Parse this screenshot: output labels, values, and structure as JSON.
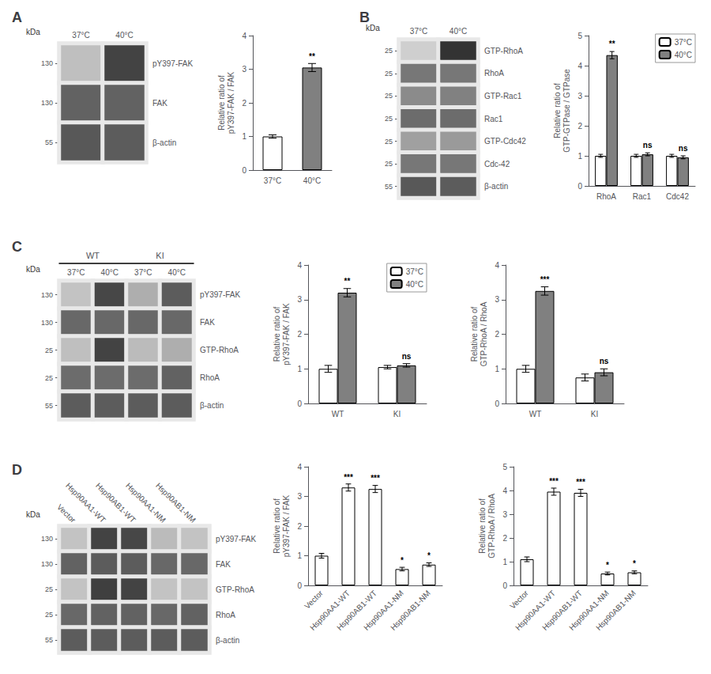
{
  "chart_data": [
    {
      "type": "heatmap",
      "title": "A",
      "x": [
        "37°C",
        "40°C"
      ],
      "categories": [
        "pY397-FAK",
        "FAK",
        "β-actin"
      ],
      "ylabel": "kDa",
      "kda": [
        130,
        130,
        55
      ],
      "values": [
        [
          0.2,
          0.8
        ],
        [
          0.65,
          0.65
        ],
        [
          0.7,
          0.68
        ]
      ],
      "zlim": [
        0,
        1
      ],
      "color": "#e8e8e8"
    },
    {
      "type": "bar",
      "categories": [
        "37°C",
        "40°C"
      ],
      "values": [
        1.0,
        3.05
      ],
      "errors": [
        0.05,
        0.12
      ],
      "colors": [
        "white",
        "#808080"
      ],
      "significance": [
        null,
        "**"
      ],
      "ylabel": "Relative ratio of\npY397-FAK / FAK",
      "ylim": [
        0,
        4
      ],
      "yticks": [
        0,
        1,
        2,
        3,
        4
      ],
      "grid": false
    },
    {
      "type": "heatmap",
      "title": "B",
      "x": [
        "37°C",
        "40°C"
      ],
      "categories": [
        "GTP-RhoA",
        "RhoA",
        "GTP-Rac1",
        "Rac1",
        "GTP-Cdc42",
        "Cdc-42",
        "β-actin"
      ],
      "ylabel": "kDa",
      "kda": [
        25,
        25,
        25,
        25,
        25,
        25,
        55
      ],
      "values": [
        [
          0.12,
          0.88
        ],
        [
          0.55,
          0.55
        ],
        [
          0.45,
          0.5
        ],
        [
          0.6,
          0.6
        ],
        [
          0.35,
          0.38
        ],
        [
          0.55,
          0.55
        ],
        [
          0.7,
          0.68
        ]
      ],
      "zlim": [
        0,
        1
      ],
      "color": "#e8e8e8"
    },
    {
      "type": "bar",
      "categories": [
        "RhoA",
        "Rac1",
        "Cdc42"
      ],
      "series": [
        {
          "name": "37°C",
          "color": "white",
          "values": [
            1.0,
            1.0,
            1.0
          ],
          "errors": [
            0.05,
            0.05,
            0.05
          ]
        },
        {
          "name": "40°C",
          "color": "#808080",
          "values": [
            4.35,
            1.05,
            0.95
          ],
          "errors": [
            0.12,
            0.05,
            0.05
          ],
          "significance": [
            "**",
            "ns",
            "ns"
          ]
        }
      ],
      "ylabel": "Relative ratio of\nGTP-GTPase / GTPase",
      "ylim": [
        0,
        5
      ],
      "yticks": [
        0,
        1,
        2,
        3,
        4,
        5
      ],
      "legend": "upper right",
      "grid": false
    },
    {
      "type": "heatmap",
      "title": "C",
      "groups": [
        "WT",
        "KI"
      ],
      "x": [
        "37°C",
        "40°C",
        "37°C",
        "40°C"
      ],
      "categories": [
        "pY397-FAK",
        "FAK",
        "GTP-RhoA",
        "RhoA",
        "β-actin"
      ],
      "ylabel": "kDa",
      "kda": [
        130,
        130,
        25,
        25,
        55
      ],
      "values": [
        [
          0.18,
          0.78,
          0.28,
          0.68
        ],
        [
          0.62,
          0.62,
          0.62,
          0.62
        ],
        [
          0.2,
          0.8,
          0.22,
          0.28
        ],
        [
          0.6,
          0.6,
          0.6,
          0.65
        ],
        [
          0.68,
          0.68,
          0.68,
          0.68
        ]
      ],
      "zlim": [
        0,
        1
      ],
      "color": "#e8e8e8"
    },
    {
      "type": "bar",
      "categories": [
        "WT",
        "KI"
      ],
      "series": [
        {
          "name": "37°C",
          "color": "white",
          "values": [
            1.0,
            1.05
          ],
          "errors": [
            0.1,
            0.05
          ]
        },
        {
          "name": "40°C",
          "color": "#808080",
          "values": [
            3.2,
            1.1
          ],
          "errors": [
            0.12,
            0.05
          ],
          "significance": [
            "**",
            "ns"
          ]
        }
      ],
      "ylabel": "Relative ratio of\npY397-FAK / FAK",
      "ylim": [
        0,
        4
      ],
      "yticks": [
        0,
        1,
        2,
        3,
        4
      ],
      "legend": "upper right",
      "grid": false
    },
    {
      "type": "bar",
      "categories": [
        "WT",
        "KI"
      ],
      "series": [
        {
          "name": "37°C",
          "color": "white",
          "values": [
            1.0,
            0.75
          ],
          "errors": [
            0.1,
            0.1
          ]
        },
        {
          "name": "40°C",
          "color": "#808080",
          "values": [
            3.25,
            0.9
          ],
          "errors": [
            0.12,
            0.1
          ],
          "significance": [
            "***",
            "ns"
          ]
        }
      ],
      "ylabel": "Relative ratio of\nGTP-RhoA / RhoA",
      "ylim": [
        0,
        4
      ],
      "yticks": [
        0,
        1,
        2,
        3,
        4
      ],
      "grid": false
    },
    {
      "type": "heatmap",
      "title": "D",
      "x": [
        "Vector",
        "Hsp90AA1-WT",
        "Hsp90AB1-WT",
        "Hsp90AA1-NM",
        "Hsp90AB1-NM"
      ],
      "categories": [
        "pY397-FAK",
        "FAK",
        "GTP-RhoA",
        "RhoA",
        "β-actin"
      ],
      "ylabel": "kDa",
      "kda": [
        130,
        130,
        25,
        25,
        55
      ],
      "values": [
        [
          0.18,
          0.8,
          0.78,
          0.22,
          0.18
        ],
        [
          0.65,
          0.68,
          0.68,
          0.62,
          0.62
        ],
        [
          0.18,
          0.82,
          0.8,
          0.18,
          0.18
        ],
        [
          0.62,
          0.65,
          0.65,
          0.62,
          0.65
        ],
        [
          0.68,
          0.68,
          0.68,
          0.68,
          0.68
        ]
      ],
      "zlim": [
        0,
        1
      ],
      "color": "#e8e8e8"
    },
    {
      "type": "bar",
      "categories": [
        "Vector",
        "Hsp90AA1-WT",
        "Hsp90AB1-WT",
        "Hsp90AA1-NM",
        "Hsp90AB1-NM"
      ],
      "values": [
        1.0,
        3.3,
        3.25,
        0.55,
        0.7
      ],
      "errors": [
        0.08,
        0.12,
        0.12,
        0.06,
        0.06
      ],
      "color": "white",
      "significance": [
        null,
        "***",
        "***",
        "*",
        "*"
      ],
      "ylabel": "Relative ratio of\npY397-FAK / FAK",
      "ylim": [
        0,
        4
      ],
      "yticks": [
        0,
        1,
        2,
        3,
        4
      ],
      "grid": false
    },
    {
      "type": "bar",
      "categories": [
        "Vector",
        "Hsp90AA1-WT",
        "Hsp90AB1-WT",
        "Hsp90AA1-NM",
        "Hsp90AB1-NM"
      ],
      "values": [
        1.1,
        3.95,
        3.9,
        0.5,
        0.55
      ],
      "errors": [
        0.1,
        0.15,
        0.15,
        0.06,
        0.06
      ],
      "color": "white",
      "significance": [
        null,
        "***",
        "***",
        "*",
        "*"
      ],
      "ylabel": "Relative ratio of\nGTP-RhoA / RhoA",
      "ylim": [
        0,
        5
      ],
      "yticks": [
        0,
        1,
        2,
        3,
        4,
        5
      ],
      "grid": false
    }
  ]
}
